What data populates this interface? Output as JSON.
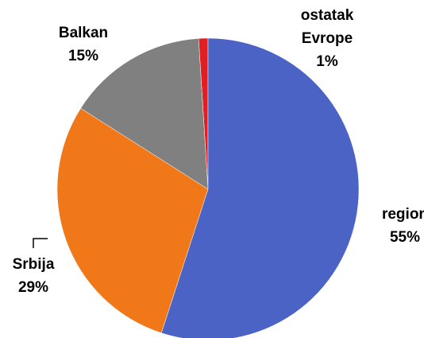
{
  "chart_data": {
    "type": "pie",
    "categories": [
      "region",
      "Srbija",
      "Balkan",
      "ostatak Evrope"
    ],
    "values": [
      55,
      29,
      15,
      1
    ],
    "value_labels": [
      "55%",
      "29%",
      "15%",
      "1%"
    ],
    "colors": [
      "#4a63c4",
      "#f07818",
      "#808080",
      "#e02020"
    ]
  }
}
